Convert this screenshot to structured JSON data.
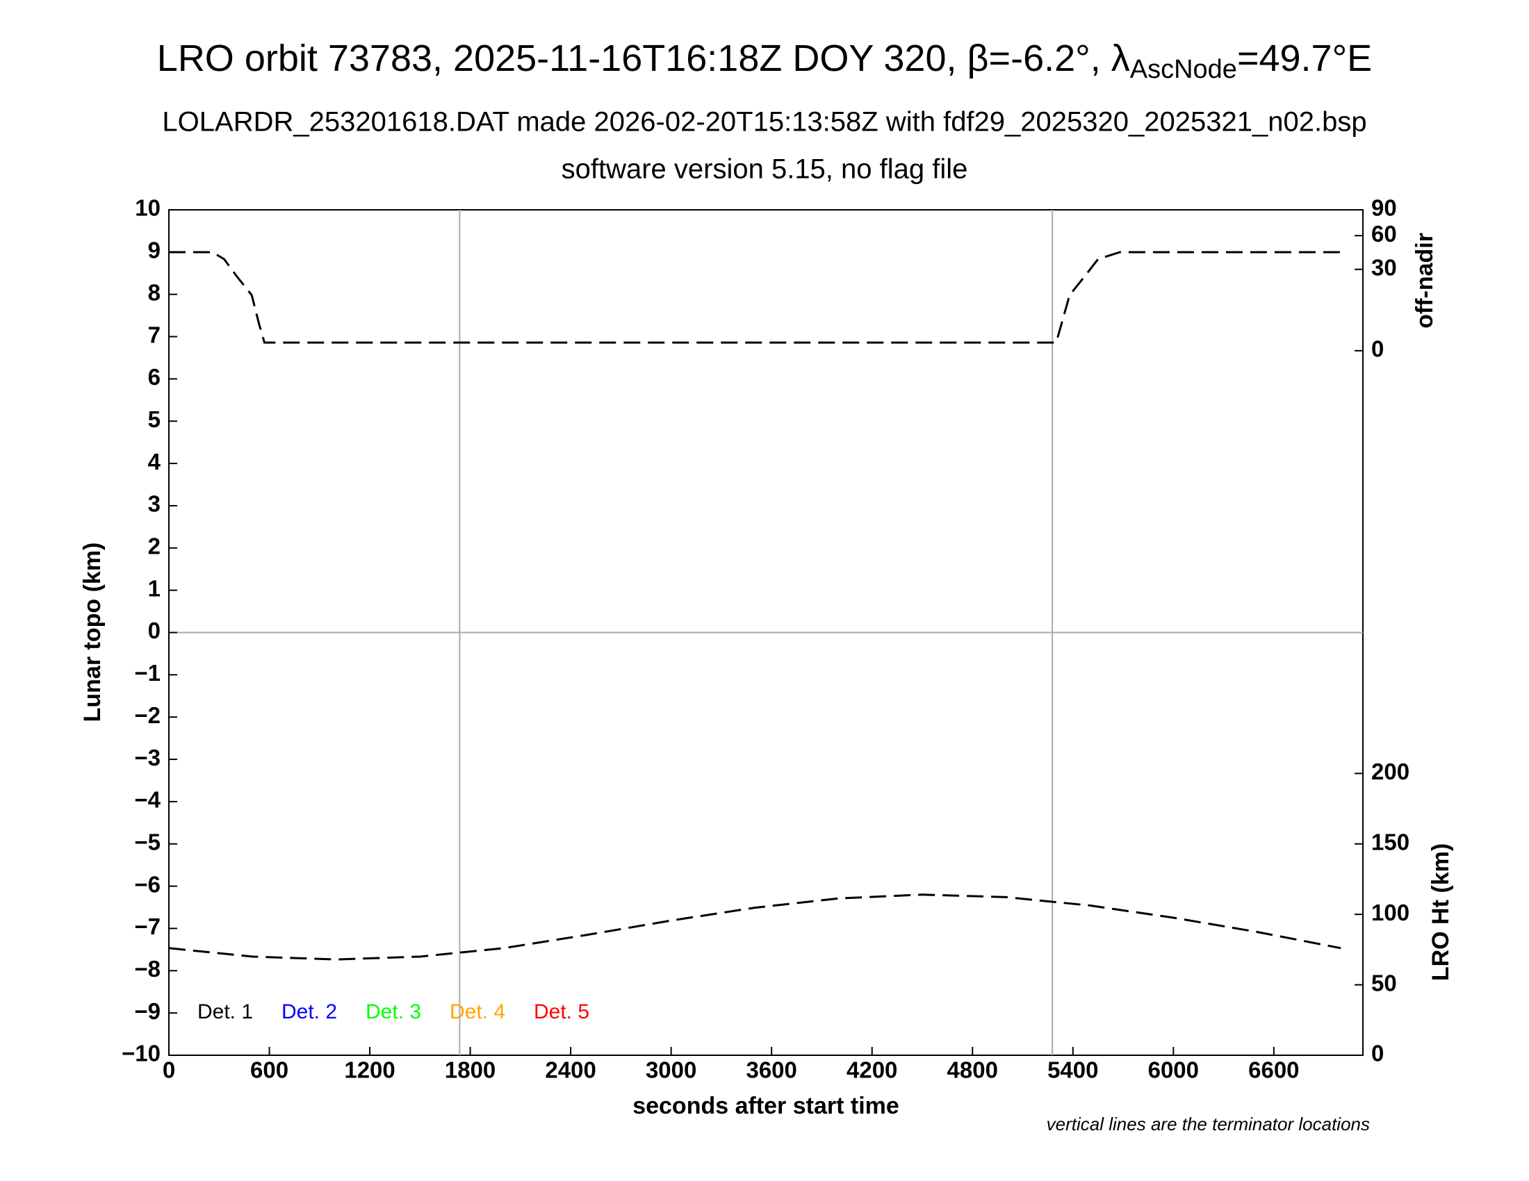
{
  "chart_data": {
    "type": "line",
    "title_parts": [
      "LRO orbit 73783, 2025-11-16T16:18Z DOY 320, β=-6.2°, λ",
      "AscNode",
      "=49.7°E"
    ],
    "subtitle": "LOLARDR_253201618.DAT made 2026-02-20T15:13:58Z with fdf29_2025320_2025321_n02.bsp",
    "subtitle2": "software version 5.15, no flag file",
    "xlabel": "seconds after start time",
    "ylabel": "Lunar topo (km)",
    "y2label": "off-nadir",
    "y3label": "LRO Ht (km)",
    "note": "vertical lines are the terminator locations",
    "xlim": [
      0,
      7132
    ],
    "xticks": [
      0,
      600,
      1200,
      1800,
      2400,
      3000,
      3600,
      4200,
      4800,
      5400,
      6000,
      6600
    ],
    "ylim": [
      -10,
      10
    ],
    "yticks": [
      {
        "value": -10,
        "label": "−10"
      },
      {
        "value": -9,
        "label": "−9"
      },
      {
        "value": -8,
        "label": "−8"
      },
      {
        "value": -7,
        "label": "−7"
      },
      {
        "value": -6,
        "label": "−6"
      },
      {
        "value": -5,
        "label": "−5"
      },
      {
        "value": -4,
        "label": "−4"
      },
      {
        "value": -3,
        "label": "−3"
      },
      {
        "value": -2,
        "label": "−2"
      },
      {
        "value": -1,
        "label": "−1"
      },
      0,
      1,
      2,
      3,
      4,
      5,
      6,
      7,
      8,
      9,
      10
    ],
    "y2lim": [
      0,
      90
    ],
    "y2scale": "sqrt",
    "y2ticks": [
      0,
      30,
      60,
      90
    ],
    "y3lim": [
      0,
      300
    ],
    "y3ticks": [
      0,
      50,
      100,
      150,
      200
    ],
    "zero_line": true,
    "terminators": [
      1737,
      5277
    ],
    "legend": [
      {
        "name": "Det. 1",
        "color": "#000000"
      },
      {
        "name": "Det. 2",
        "color": "#0000ff"
      },
      {
        "name": "Det. 3",
        "color": "#00ff00"
      },
      {
        "name": "Det. 4",
        "color": "#ffa500"
      },
      {
        "name": "Det. 5",
        "color": "#ff0000"
      }
    ],
    "series": [
      {
        "axis": "y2",
        "color": "#000000",
        "dashed": true,
        "x": [
          0,
          260,
          330,
          406,
          495,
          540,
          571,
          5300,
          5330,
          5380,
          5470,
          5550,
          5680,
          7000
        ],
        "values": [
          44,
          44,
          38,
          25,
          14,
          3,
          0.3,
          0.3,
          3,
          14,
          25,
          38,
          44,
          44
        ]
      },
      {
        "axis": "y3",
        "color": "#000000",
        "dashed": true,
        "x": [
          0,
          500,
          1000,
          1500,
          2000,
          2500,
          3000,
          3500,
          4000,
          4500,
          5000,
          5500,
          6000,
          6500,
          7000
        ],
        "values": [
          76,
          70,
          68,
          70,
          76,
          85.5,
          95.6,
          104.7,
          111.3,
          114,
          112.2,
          106.3,
          97.6,
          87.5,
          76
        ]
      }
    ]
  }
}
